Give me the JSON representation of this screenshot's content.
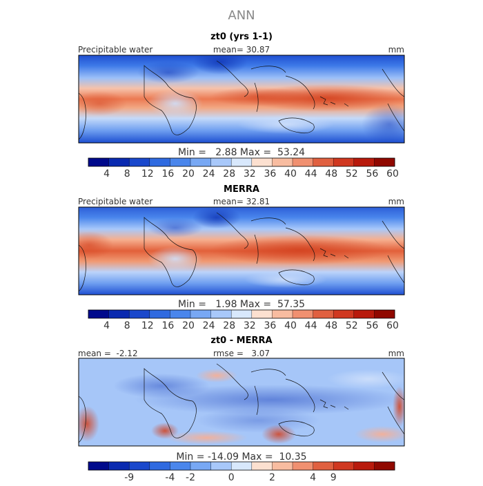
{
  "figure": {
    "title": "ANN"
  },
  "panels": [
    {
      "title": "zt0 (yrs 1-1)",
      "left_label": "Precipitable water",
      "center_label": "mean=  30.87",
      "right_label": "mm",
      "minmax": "Min =   2.88 Max =  53.24",
      "palette": "abs"
    },
    {
      "title": "MERRA",
      "left_label": "Precipitable water",
      "center_label": "mean=  32.81",
      "right_label": "mm",
      "minmax": "Min =   1.98 Max =  57.35",
      "palette": "abs"
    },
    {
      "title": "zt0 - MERRA",
      "left_label": "mean =  -2.12",
      "center_label": "rmse =   3.07",
      "right_label": "mm",
      "minmax": "Min = -14.09 Max =  10.35",
      "palette": "diff"
    }
  ],
  "colorbars": {
    "abs": {
      "colors": [
        "#000a8c",
        "#0a2ab0",
        "#1a48cc",
        "#2f6ae0",
        "#4a86ec",
        "#78a8f4",
        "#a8c8fa",
        "#d8e8fc",
        "#fce0d0",
        "#f8bca0",
        "#f09070",
        "#e06040",
        "#d03820",
        "#b81a0c",
        "#900800"
      ],
      "tick_labels": [
        "4",
        "8",
        "12",
        "16",
        "20",
        "24",
        "28",
        "32",
        "36",
        "40",
        "44",
        "48",
        "52",
        "56",
        "60"
      ]
    },
    "diff": {
      "colors": [
        "#000a8c",
        "#0a2ab0",
        "#1a48cc",
        "#2f6ae0",
        "#4a86ec",
        "#78a8f4",
        "#a8c8fa",
        "#d8e8fc",
        "#fce0d0",
        "#f8bca0",
        "#f09070",
        "#e06040",
        "#d03820",
        "#b81a0c",
        "#900800"
      ],
      "tick_labels": [
        "-9",
        "-4",
        "-2",
        "0",
        "2",
        "4",
        "9"
      ]
    }
  }
}
